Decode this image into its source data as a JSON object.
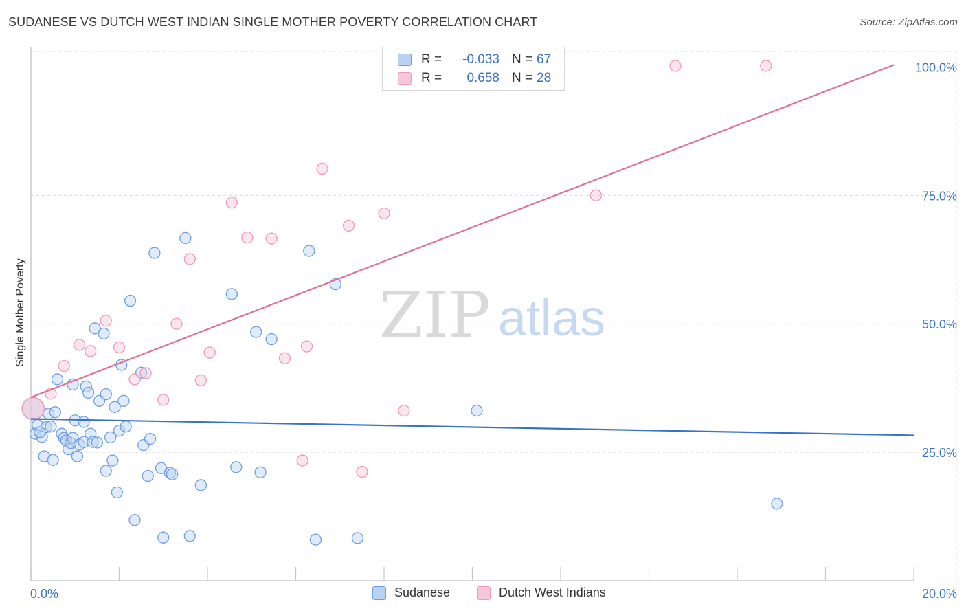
{
  "title": "SUDANESE VS DUTCH WEST INDIAN SINGLE MOTHER POVERTY CORRELATION CHART",
  "source": "Source: ZipAtlas.com",
  "watermark": {
    "zip": "ZIP",
    "atlas": "atlas"
  },
  "legend": {
    "rows": [
      {
        "r_label": "R =",
        "r_value": "-0.033",
        "n_label": "N =",
        "n_value": "67"
      },
      {
        "r_label": "R =",
        "r_value": "0.658",
        "n_label": "N =",
        "n_value": "28"
      }
    ]
  },
  "colors": {
    "blue": "#3b72c9",
    "blue_fill": "#b9d2f3",
    "blue_stroke": "#6f9fe0",
    "pink": "#e07096",
    "pink_fill": "#f6c7d6",
    "pink_stroke": "#ec9ab6"
  },
  "chart_data": {
    "type": "scatter",
    "title": "SUDANESE VS DUTCH WEST INDIAN SINGLE MOTHER POVERTY CORRELATION CHART",
    "xlabel": "",
    "ylabel": "Single Mother Poverty",
    "xlim": [
      0,
      20
    ],
    "ylim": [
      0,
      103
    ],
    "x_ticks": [
      "0.0%",
      "20.0%"
    ],
    "y_ticks": [
      {
        "value": 25,
        "label": "25.0%"
      },
      {
        "value": 50,
        "label": "50.0%"
      },
      {
        "value": 75,
        "label": "75.0%"
      },
      {
        "value": 100,
        "label": "100.0%"
      }
    ],
    "legend_position": "bottom",
    "series": [
      {
        "name": "Sudanese",
        "color": "#3b72c9",
        "trend": {
          "x": [
            0,
            20
          ],
          "y": [
            31.5,
            28.3
          ]
        },
        "points": [
          {
            "x": 0.05,
            "y": 33.5
          },
          {
            "x": 0.1,
            "y": 28.6
          },
          {
            "x": 0.15,
            "y": 30.3
          },
          {
            "x": 0.25,
            "y": 28.0
          },
          {
            "x": 0.3,
            "y": 24.2
          },
          {
            "x": 0.35,
            "y": 29.9
          },
          {
            "x": 0.4,
            "y": 32.5
          },
          {
            "x": 0.45,
            "y": 30.0
          },
          {
            "x": 0.5,
            "y": 23.5
          },
          {
            "x": 0.55,
            "y": 32.8
          },
          {
            "x": 0.6,
            "y": 39.2
          },
          {
            "x": 0.7,
            "y": 28.6
          },
          {
            "x": 0.75,
            "y": 27.8
          },
          {
            "x": 0.8,
            "y": 27.3
          },
          {
            "x": 0.85,
            "y": 25.6
          },
          {
            "x": 0.9,
            "y": 26.8
          },
          {
            "x": 0.95,
            "y": 27.8
          },
          {
            "x": 0.95,
            "y": 38.2
          },
          {
            "x": 1.0,
            "y": 31.2
          },
          {
            "x": 1.05,
            "y": 24.2
          },
          {
            "x": 1.1,
            "y": 26.5
          },
          {
            "x": 1.2,
            "y": 27.0
          },
          {
            "x": 1.2,
            "y": 30.9
          },
          {
            "x": 1.25,
            "y": 37.8
          },
          {
            "x": 1.3,
            "y": 36.6
          },
          {
            "x": 1.35,
            "y": 28.6
          },
          {
            "x": 1.4,
            "y": 27.0
          },
          {
            "x": 1.45,
            "y": 49.1
          },
          {
            "x": 1.5,
            "y": 26.9
          },
          {
            "x": 1.55,
            "y": 35.0
          },
          {
            "x": 1.65,
            "y": 48.1
          },
          {
            "x": 1.7,
            "y": 36.3
          },
          {
            "x": 1.7,
            "y": 21.4
          },
          {
            "x": 1.8,
            "y": 27.9
          },
          {
            "x": 1.85,
            "y": 23.4
          },
          {
            "x": 1.9,
            "y": 33.8
          },
          {
            "x": 1.95,
            "y": 17.2
          },
          {
            "x": 2.0,
            "y": 29.2
          },
          {
            "x": 2.05,
            "y": 42.0
          },
          {
            "x": 2.1,
            "y": 35.0
          },
          {
            "x": 2.15,
            "y": 30.0
          },
          {
            "x": 2.25,
            "y": 54.5
          },
          {
            "x": 2.35,
            "y": 11.8
          },
          {
            "x": 2.5,
            "y": 40.5
          },
          {
            "x": 2.55,
            "y": 26.4
          },
          {
            "x": 2.65,
            "y": 20.4
          },
          {
            "x": 2.7,
            "y": 27.6
          },
          {
            "x": 2.8,
            "y": 63.8
          },
          {
            "x": 2.95,
            "y": 21.9
          },
          {
            "x": 3.0,
            "y": 8.4
          },
          {
            "x": 3.15,
            "y": 21.0
          },
          {
            "x": 3.2,
            "y": 20.7
          },
          {
            "x": 3.5,
            "y": 66.7
          },
          {
            "x": 3.6,
            "y": 8.7
          },
          {
            "x": 3.85,
            "y": 18.6
          },
          {
            "x": 4.55,
            "y": 55.8
          },
          {
            "x": 4.65,
            "y": 22.1
          },
          {
            "x": 5.1,
            "y": 48.4
          },
          {
            "x": 5.2,
            "y": 21.1
          },
          {
            "x": 5.45,
            "y": 47.0
          },
          {
            "x": 6.3,
            "y": 64.2
          },
          {
            "x": 6.45,
            "y": 8.0
          },
          {
            "x": 6.9,
            "y": 57.7
          },
          {
            "x": 7.4,
            "y": 8.3
          },
          {
            "x": 10.1,
            "y": 33.1
          },
          {
            "x": 16.9,
            "y": 15.0
          },
          {
            "x": 0.2,
            "y": 28.9
          }
        ]
      },
      {
        "name": "Dutch West Indians",
        "color": "#e07096",
        "trend": {
          "x": [
            0,
            19.55
          ],
          "y": [
            35.7,
            100.4
          ]
        },
        "points": [
          {
            "x": 0.05,
            "y": 33.5
          },
          {
            "x": 0.45,
            "y": 36.4
          },
          {
            "x": 0.75,
            "y": 41.8
          },
          {
            "x": 1.1,
            "y": 45.9
          },
          {
            "x": 1.35,
            "y": 44.7
          },
          {
            "x": 1.7,
            "y": 50.6
          },
          {
            "x": 2.0,
            "y": 45.4
          },
          {
            "x": 2.35,
            "y": 39.2
          },
          {
            "x": 2.6,
            "y": 40.4
          },
          {
            "x": 3.0,
            "y": 35.2
          },
          {
            "x": 3.3,
            "y": 50.0
          },
          {
            "x": 3.6,
            "y": 62.6
          },
          {
            "x": 3.85,
            "y": 39.0
          },
          {
            "x": 4.05,
            "y": 44.4
          },
          {
            "x": 4.55,
            "y": 73.6
          },
          {
            "x": 4.9,
            "y": 66.8
          },
          {
            "x": 5.45,
            "y": 66.6
          },
          {
            "x": 5.75,
            "y": 43.3
          },
          {
            "x": 6.15,
            "y": 23.4
          },
          {
            "x": 6.25,
            "y": 45.6
          },
          {
            "x": 6.6,
            "y": 80.2
          },
          {
            "x": 7.2,
            "y": 69.1
          },
          {
            "x": 7.5,
            "y": 21.2
          },
          {
            "x": 8.0,
            "y": 71.5
          },
          {
            "x": 8.45,
            "y": 33.1
          },
          {
            "x": 12.8,
            "y": 75.0
          },
          {
            "x": 14.6,
            "y": 100.2
          },
          {
            "x": 16.65,
            "y": 100.2
          }
        ]
      }
    ]
  }
}
